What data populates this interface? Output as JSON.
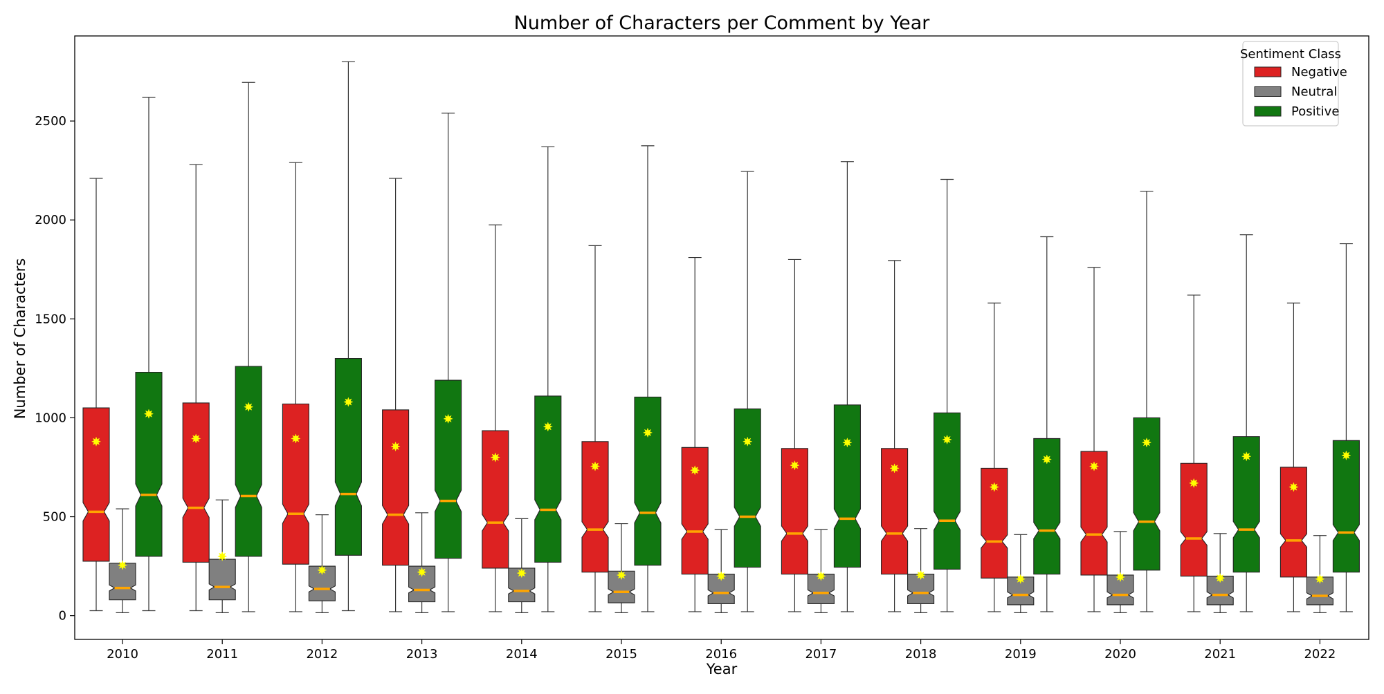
{
  "chart_data": {
    "type": "box",
    "title": "Number of Characters per Comment by Year",
    "xlabel": "Year",
    "ylabel": "Number of Characters",
    "ylim": [
      -120,
      2930
    ],
    "yticks": [
      0,
      500,
      1000,
      1500,
      2000,
      2500
    ],
    "categories": [
      "2010",
      "2011",
      "2012",
      "2013",
      "2014",
      "2015",
      "2016",
      "2017",
      "2018",
      "2019",
      "2020",
      "2021",
      "2022"
    ],
    "notched": true,
    "grid": false,
    "legend": {
      "title": "Sentiment Class",
      "placement": "top-right"
    },
    "median_color": "#ffa500",
    "mean_color": "#ffff00",
    "series": [
      {
        "name": "Negative",
        "color": "#dd2222",
        "boxes": [
          {
            "whislo": 25,
            "q1": 275,
            "med": 525,
            "q3": 1050,
            "whishi": 2210,
            "mean": 880
          },
          {
            "whislo": 25,
            "q1": 270,
            "med": 545,
            "q3": 1075,
            "whishi": 2280,
            "mean": 895
          },
          {
            "whislo": 20,
            "q1": 260,
            "med": 515,
            "q3": 1070,
            "whishi": 2290,
            "mean": 895
          },
          {
            "whislo": 20,
            "q1": 255,
            "med": 510,
            "q3": 1040,
            "whishi": 2210,
            "mean": 855
          },
          {
            "whislo": 20,
            "q1": 240,
            "med": 470,
            "q3": 935,
            "whishi": 1975,
            "mean": 800
          },
          {
            "whislo": 20,
            "q1": 220,
            "med": 435,
            "q3": 880,
            "whishi": 1870,
            "mean": 755
          },
          {
            "whislo": 20,
            "q1": 210,
            "med": 425,
            "q3": 850,
            "whishi": 1810,
            "mean": 735
          },
          {
            "whislo": 20,
            "q1": 210,
            "med": 415,
            "q3": 845,
            "whishi": 1800,
            "mean": 760
          },
          {
            "whislo": 20,
            "q1": 210,
            "med": 415,
            "q3": 845,
            "whishi": 1795,
            "mean": 745
          },
          {
            "whislo": 20,
            "q1": 190,
            "med": 375,
            "q3": 745,
            "whishi": 1580,
            "mean": 650
          },
          {
            "whislo": 20,
            "q1": 205,
            "med": 410,
            "q3": 830,
            "whishi": 1760,
            "mean": 755
          },
          {
            "whislo": 20,
            "q1": 200,
            "med": 390,
            "q3": 770,
            "whishi": 1620,
            "mean": 670
          },
          {
            "whislo": 20,
            "q1": 195,
            "med": 380,
            "q3": 750,
            "whishi": 1580,
            "mean": 650
          }
        ]
      },
      {
        "name": "Neutral",
        "color": "#808080",
        "boxes": [
          {
            "whislo": 15,
            "q1": 80,
            "med": 140,
            "q3": 265,
            "whishi": 540,
            "mean": 255
          },
          {
            "whislo": 15,
            "q1": 80,
            "med": 145,
            "q3": 285,
            "whishi": 585,
            "mean": 300
          },
          {
            "whislo": 15,
            "q1": 75,
            "med": 135,
            "q3": 250,
            "whishi": 510,
            "mean": 230
          },
          {
            "whislo": 15,
            "q1": 70,
            "med": 130,
            "q3": 250,
            "whishi": 520,
            "mean": 220
          },
          {
            "whislo": 15,
            "q1": 70,
            "med": 125,
            "q3": 240,
            "whishi": 490,
            "mean": 215
          },
          {
            "whislo": 15,
            "q1": 65,
            "med": 120,
            "q3": 225,
            "whishi": 465,
            "mean": 205
          },
          {
            "whislo": 15,
            "q1": 60,
            "med": 115,
            "q3": 210,
            "whishi": 435,
            "mean": 200
          },
          {
            "whislo": 15,
            "q1": 60,
            "med": 115,
            "q3": 210,
            "whishi": 435,
            "mean": 200
          },
          {
            "whislo": 15,
            "q1": 60,
            "med": 115,
            "q3": 210,
            "whishi": 440,
            "mean": 205
          },
          {
            "whislo": 15,
            "q1": 55,
            "med": 105,
            "q3": 195,
            "whishi": 410,
            "mean": 185
          },
          {
            "whislo": 15,
            "q1": 55,
            "med": 105,
            "q3": 205,
            "whishi": 425,
            "mean": 195
          },
          {
            "whislo": 15,
            "q1": 55,
            "med": 105,
            "q3": 200,
            "whishi": 415,
            "mean": 190
          },
          {
            "whislo": 15,
            "q1": 55,
            "med": 100,
            "q3": 195,
            "whishi": 405,
            "mean": 185
          }
        ]
      },
      {
        "name": "Positive",
        "color": "#117711",
        "boxes": [
          {
            "whislo": 25,
            "q1": 300,
            "med": 610,
            "q3": 1230,
            "whishi": 2620,
            "mean": 1020
          },
          {
            "whislo": 20,
            "q1": 300,
            "med": 605,
            "q3": 1260,
            "whishi": 2695,
            "mean": 1055
          },
          {
            "whislo": 25,
            "q1": 305,
            "med": 615,
            "q3": 1300,
            "whishi": 2800,
            "mean": 1080
          },
          {
            "whislo": 20,
            "q1": 290,
            "med": 580,
            "q3": 1190,
            "whishi": 2540,
            "mean": 995
          },
          {
            "whislo": 20,
            "q1": 270,
            "med": 535,
            "q3": 1110,
            "whishi": 2370,
            "mean": 955
          },
          {
            "whislo": 20,
            "q1": 255,
            "med": 520,
            "q3": 1105,
            "whishi": 2375,
            "mean": 925
          },
          {
            "whislo": 20,
            "q1": 245,
            "med": 500,
            "q3": 1045,
            "whishi": 2245,
            "mean": 880
          },
          {
            "whislo": 20,
            "q1": 245,
            "med": 490,
            "q3": 1065,
            "whishi": 2295,
            "mean": 875
          },
          {
            "whislo": 20,
            "q1": 235,
            "med": 480,
            "q3": 1025,
            "whishi": 2205,
            "mean": 890
          },
          {
            "whislo": 20,
            "q1": 210,
            "med": 430,
            "q3": 895,
            "whishi": 1915,
            "mean": 790
          },
          {
            "whislo": 20,
            "q1": 230,
            "med": 475,
            "q3": 1000,
            "whishi": 2145,
            "mean": 875
          },
          {
            "whislo": 20,
            "q1": 220,
            "med": 435,
            "q3": 905,
            "whishi": 1925,
            "mean": 805
          },
          {
            "whislo": 20,
            "q1": 220,
            "med": 420,
            "q3": 885,
            "whishi": 1880,
            "mean": 810
          }
        ]
      }
    ]
  }
}
